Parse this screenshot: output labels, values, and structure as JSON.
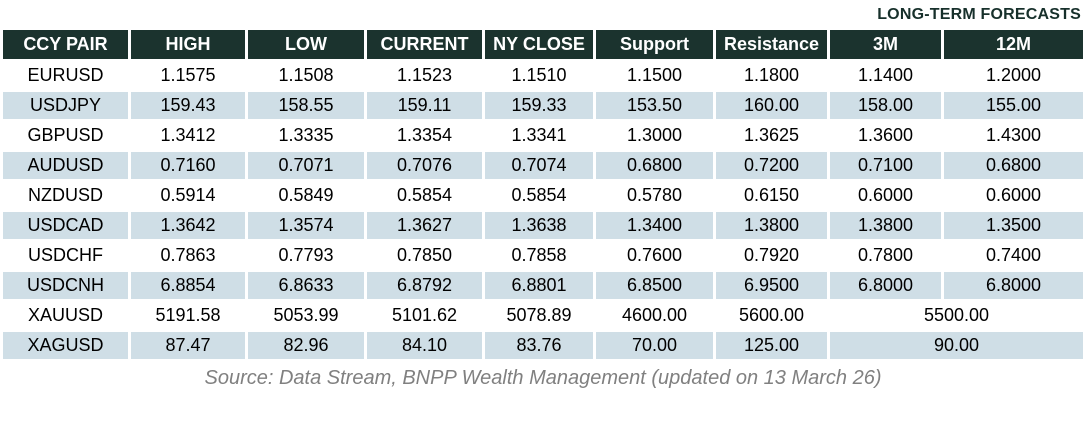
{
  "chart_data": {
    "type": "table",
    "title": "LONG-TERM FORECASTS",
    "columns": [
      "CCY PAIR",
      "HIGH",
      "LOW",
      "CURRENT",
      "NY CLOSE",
      "Support",
      "Resistance",
      "3M",
      "12M"
    ],
    "rows": [
      {
        "shaded": false,
        "merged_forecast": false,
        "cells": [
          "EURUSD",
          "1.1575",
          "1.1508",
          "1.1523",
          "1.1510",
          "1.1500",
          "1.1800",
          "1.1400",
          "1.2000"
        ]
      },
      {
        "shaded": true,
        "merged_forecast": false,
        "cells": [
          "USDJPY",
          "159.43",
          "158.55",
          "159.11",
          "159.33",
          "153.50",
          "160.00",
          "158.00",
          "155.00"
        ]
      },
      {
        "shaded": false,
        "merged_forecast": false,
        "cells": [
          "GBPUSD",
          "1.3412",
          "1.3335",
          "1.3354",
          "1.3341",
          "1.3000",
          "1.3625",
          "1.3600",
          "1.4300"
        ]
      },
      {
        "shaded": true,
        "merged_forecast": false,
        "cells": [
          "AUDUSD",
          "0.7160",
          "0.7071",
          "0.7076",
          "0.7074",
          "0.6800",
          "0.7200",
          "0.7100",
          "0.6800"
        ]
      },
      {
        "shaded": false,
        "merged_forecast": false,
        "cells": [
          "NZDUSD",
          "0.5914",
          "0.5849",
          "0.5854",
          "0.5854",
          "0.5780",
          "0.6150",
          "0.6000",
          "0.6000"
        ]
      },
      {
        "shaded": true,
        "merged_forecast": false,
        "cells": [
          "USDCAD",
          "1.3642",
          "1.3574",
          "1.3627",
          "1.3638",
          "1.3400",
          "1.3800",
          "1.3800",
          "1.3500"
        ]
      },
      {
        "shaded": false,
        "merged_forecast": false,
        "cells": [
          "USDCHF",
          "0.7863",
          "0.7793",
          "0.7850",
          "0.7858",
          "0.7600",
          "0.7920",
          "0.7800",
          "0.7400"
        ]
      },
      {
        "shaded": true,
        "merged_forecast": false,
        "cells": [
          "USDCNH",
          "6.8854",
          "6.8633",
          "6.8792",
          "6.8801",
          "6.8500",
          "6.9500",
          "6.8000",
          "6.8000"
        ]
      },
      {
        "shaded": false,
        "merged_forecast": true,
        "cells": [
          "XAUUSD",
          "5191.58",
          "5053.99",
          "5101.62",
          "5078.89",
          "4600.00",
          "5600.00",
          "5500.00"
        ]
      },
      {
        "shaded": true,
        "merged_forecast": true,
        "cells": [
          "XAGUSD",
          "87.47",
          "82.96",
          "84.10",
          "83.76",
          "70.00",
          "125.00",
          "90.00"
        ]
      }
    ],
    "source": "Source: Data Stream, BNPP Wealth Management (updated on 13 March 26)"
  },
  "colors": {
    "header_bg": "#1b332e",
    "header_text": "#ffffff",
    "shaded_row_bg": "#cfdee6",
    "body_text": "#000000",
    "title_text": "#17302b",
    "source_text": "#808080"
  }
}
